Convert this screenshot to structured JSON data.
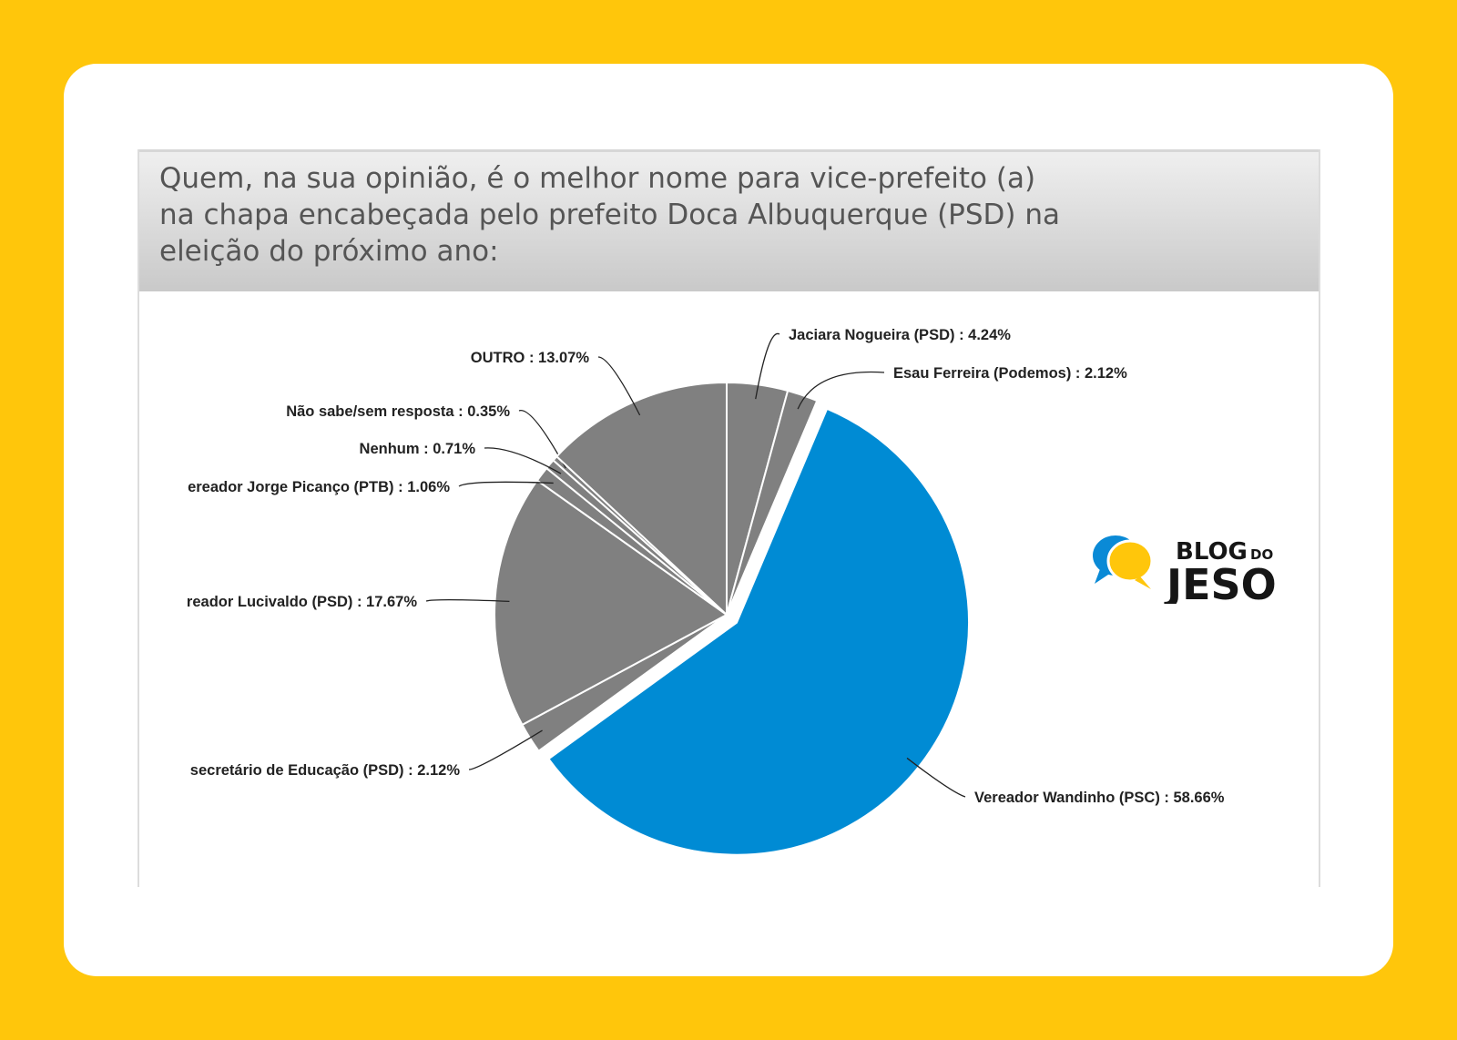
{
  "header": {
    "title_lines": [
      "Quem, na sua opinião, é o melhor nome para vice-prefeito (a)",
      "na chapa encabeçada pelo prefeito Doca Albuquerque (PSD) na",
      "eleição do próximo ano:"
    ]
  },
  "logo": {
    "word1": "BLOG",
    "word2": "DO",
    "word3": "JESO"
  },
  "chart_data": {
    "type": "pie",
    "title": "Quem, na sua opinião, é o melhor nome para vice-prefeito (a) na chapa encabeçada pelo prefeito Doca Albuquerque (PSD) na eleição do próximo ano:",
    "start": "12 o'clock, clockwise",
    "slices": [
      {
        "label": "Jaciara Nogueira (PSD) : 4.24%",
        "value": 4.24,
        "color": "#808080",
        "exploded": false
      },
      {
        "label": "Esau Ferreira (Podemos) : 2.12%",
        "value": 2.12,
        "color": "#808080",
        "exploded": false
      },
      {
        "label": "Vereador Wandinho (PSC) : 58.66%",
        "value": 58.66,
        "color": "#008BD4",
        "exploded": true
      },
      {
        "label": "secretário de Educação (PSD) : 2.12%",
        "value": 2.12,
        "color": "#808080",
        "exploded": false
      },
      {
        "label": "reador Lucivaldo (PSD) : 17.67%",
        "value": 17.67,
        "color": "#808080",
        "exploded": false
      },
      {
        "label": "ereador Jorge Picanço (PTB) : 1.06%",
        "value": 1.06,
        "color": "#808080",
        "exploded": false
      },
      {
        "label": "Nenhum : 0.71%",
        "value": 0.71,
        "color": "#808080",
        "exploded": false
      },
      {
        "label": "Não sabe/sem resposta : 0.35%",
        "value": 0.35,
        "color": "#808080",
        "exploded": false
      },
      {
        "label": "OUTRO : 13.07%",
        "value": 13.07,
        "color": "#808080",
        "exploded": false
      }
    ]
  }
}
